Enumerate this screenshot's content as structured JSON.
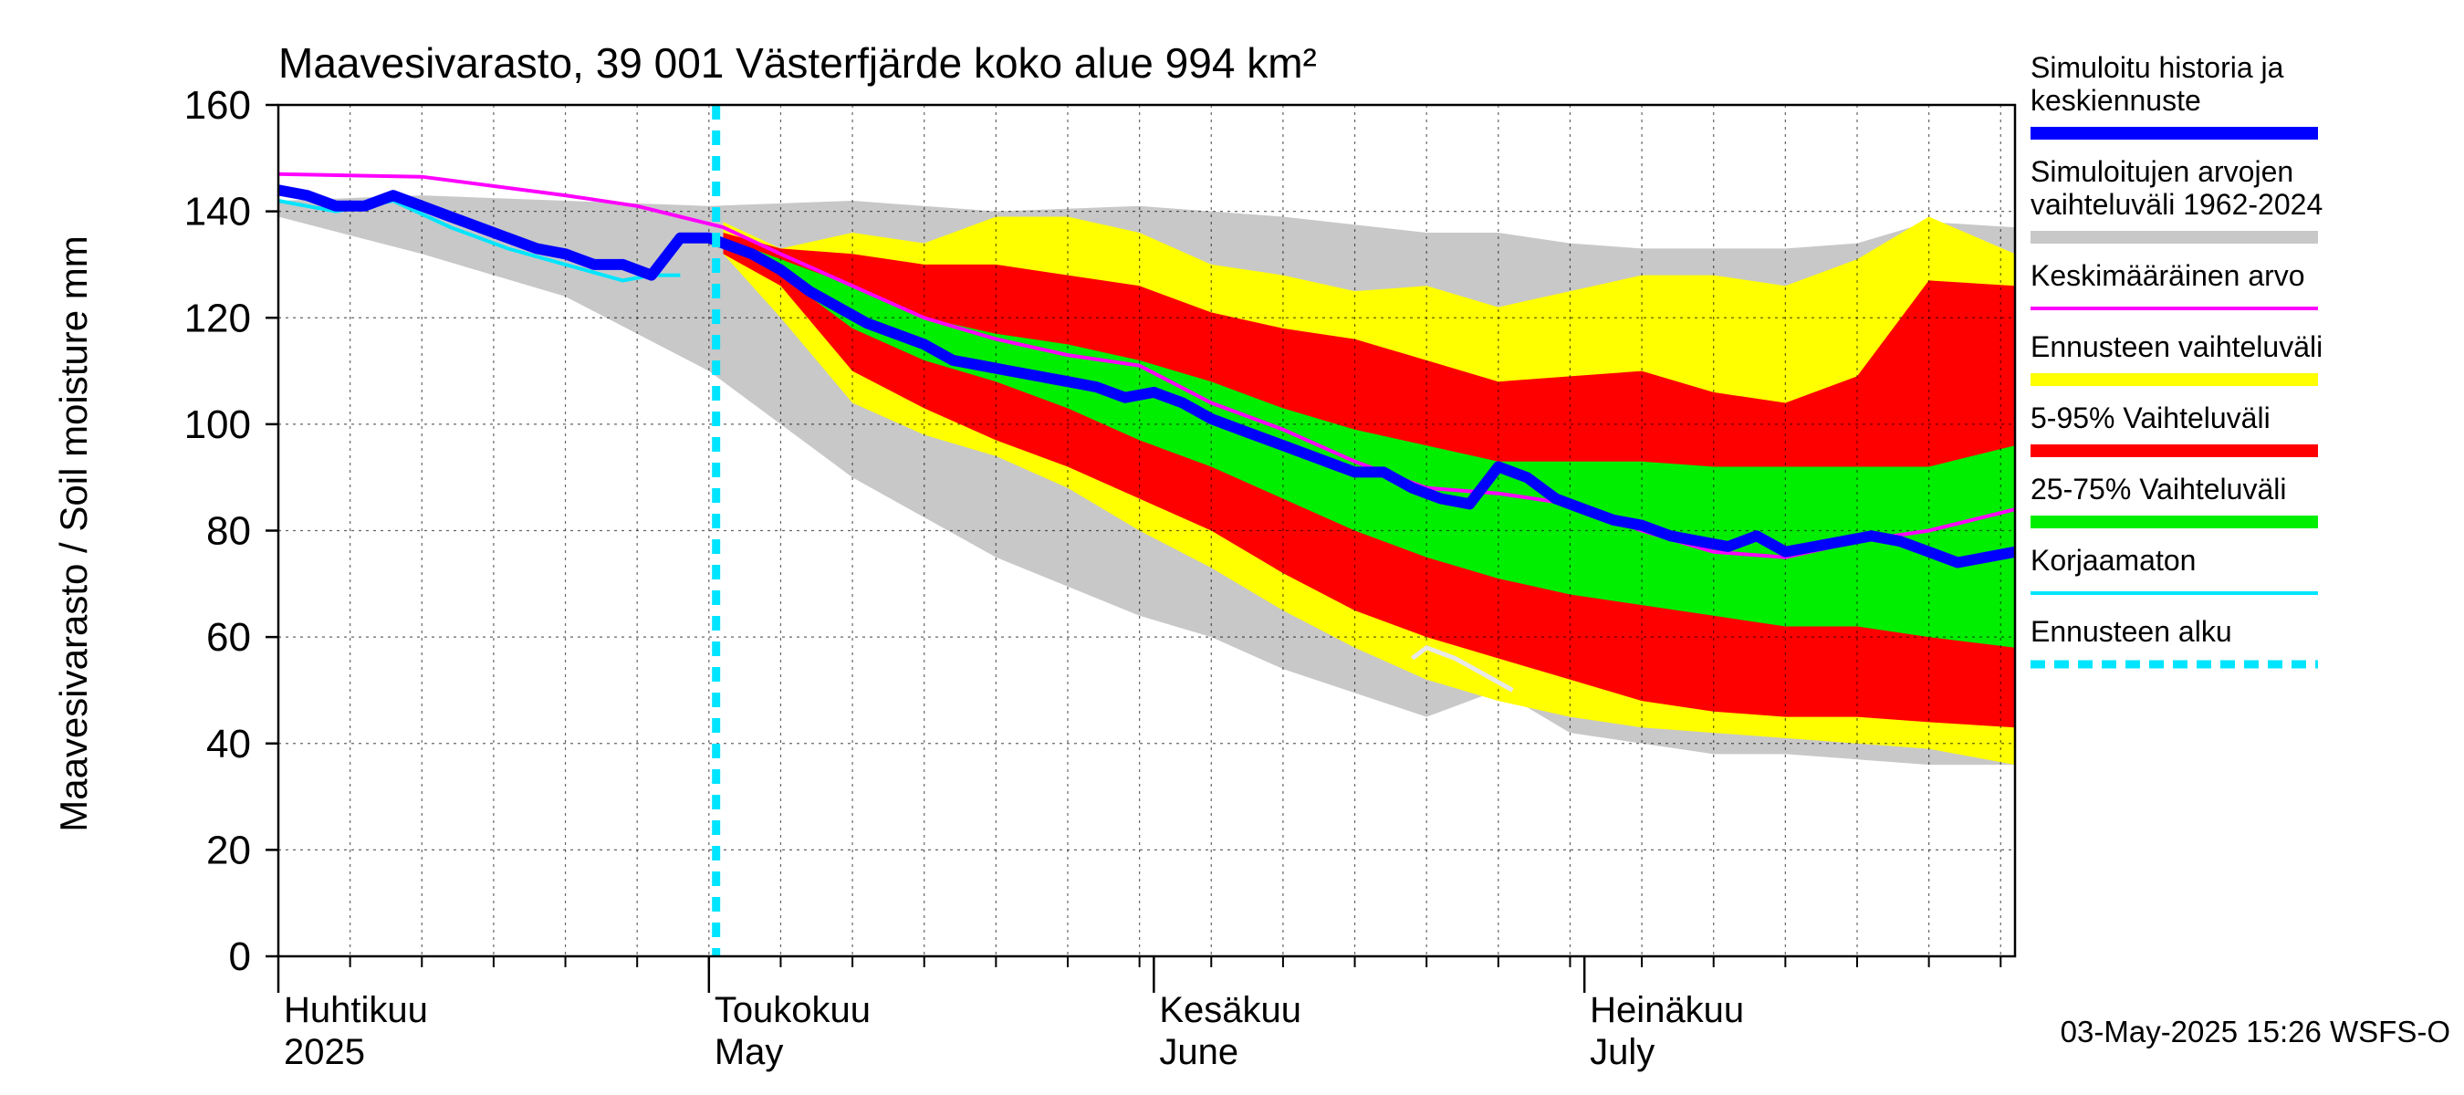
{
  "chart_data": {
    "type": "area",
    "title": "Maavesivarasto, 39 001 Västerfjärde koko alue 994 km²",
    "ylabel": "Maavesivarasto / Soil moisture   mm",
    "xlabel": "",
    "ylim": [
      0,
      160
    ],
    "yticks": [
      0,
      20,
      40,
      60,
      80,
      100,
      120,
      140,
      160
    ],
    "xlim_days": [
      0,
      121
    ],
    "grid": true,
    "month_labels": [
      {
        "day": 0,
        "fi": "Huhtikuu",
        "en": "2025"
      },
      {
        "day": 30,
        "fi": "Toukokuu",
        "en": "May"
      },
      {
        "day": 61,
        "fi": "Kesäkuu",
        "en": "June"
      },
      {
        "day": 91,
        "fi": "Heinäkuu",
        "en": "July"
      }
    ],
    "forecast_start_day": 30.5,
    "timestamp": "03-May-2025 15:26 WSFS-O",
    "colors": {
      "sim_history": "#0000ff",
      "sim_range": "#c8c8c8",
      "mean": "#ff00ff",
      "forecast_range": "#ffff00",
      "p5_95": "#ff0000",
      "p25_75": "#00ee00",
      "uncorrected": "#00e5ff",
      "forecast_start": "#00e5ff",
      "scenario_line": "#e8e8e8"
    },
    "legend": [
      {
        "key": "sim_history",
        "lines": [
          "Simuloitu historia ja",
          "keskiennuste"
        ],
        "style": "thick"
      },
      {
        "key": "sim_range",
        "lines": [
          "Simuloitujen arvojen",
          "vaihteluväli 1962-2024"
        ],
        "style": "thick"
      },
      {
        "key": "mean",
        "lines": [
          "Keskimääräinen arvo"
        ],
        "style": "thin"
      },
      {
        "key": "forecast_range",
        "lines": [
          "Ennusteen vaihteluväli"
        ],
        "style": "thick"
      },
      {
        "key": "p5_95",
        "lines": [
          "5-95% Vaihteluväli"
        ],
        "style": "thick"
      },
      {
        "key": "p25_75",
        "lines": [
          "25-75% Vaihteluväli"
        ],
        "style": "thick"
      },
      {
        "key": "uncorrected",
        "lines": [
          "Korjaamaton"
        ],
        "style": "thin"
      },
      {
        "key": "forecast_start",
        "lines": [
          "Ennusteen alku"
        ],
        "style": "dashed"
      }
    ],
    "series": {
      "sim_range": {
        "x": [
          0,
          10,
          20,
          30,
          40,
          50,
          60,
          65,
          70,
          80,
          85,
          90,
          95,
          100,
          105,
          110,
          115,
          121
        ],
        "upper": [
          142,
          143,
          142,
          141,
          142,
          140,
          141,
          140,
          139,
          136,
          136,
          134,
          133,
          133,
          133,
          134,
          138,
          137
        ],
        "lower": [
          139,
          132,
          124,
          110,
          90,
          75,
          64,
          60,
          54,
          45,
          50,
          42,
          40,
          38,
          38,
          37,
          36,
          36
        ]
      },
      "forecast_range": {
        "x": [
          31,
          35,
          40,
          45,
          50,
          55,
          60,
          65,
          70,
          75,
          80,
          85,
          90,
          95,
          100,
          105,
          110,
          115,
          121
        ],
        "upper": [
          138,
          133,
          136,
          134,
          139,
          139,
          136,
          130,
          128,
          125,
          126,
          122,
          125,
          128,
          128,
          126,
          131,
          139,
          132
        ],
        "lower": [
          132,
          120,
          104,
          98,
          94,
          88,
          80,
          73,
          65,
          58,
          52,
          48,
          45,
          43,
          42,
          41,
          40,
          39,
          36
        ]
      },
      "p5_95": {
        "x": [
          31,
          35,
          40,
          45,
          50,
          55,
          60,
          65,
          70,
          75,
          80,
          85,
          90,
          95,
          100,
          105,
          110,
          115,
          121
        ],
        "upper": [
          136,
          133,
          132,
          130,
          130,
          128,
          126,
          121,
          118,
          116,
          112,
          108,
          109,
          110,
          106,
          104,
          109,
          127,
          126
        ],
        "lower": [
          132,
          126,
          110,
          103,
          97,
          92,
          86,
          80,
          72,
          65,
          60,
          56,
          52,
          48,
          46,
          45,
          45,
          44,
          43
        ]
      },
      "p25_75": {
        "x": [
          31,
          35,
          40,
          45,
          50,
          55,
          60,
          65,
          70,
          75,
          80,
          85,
          90,
          95,
          100,
          105,
          110,
          115,
          121
        ],
        "upper": [
          135,
          131,
          126,
          120,
          117,
          115,
          112,
          108,
          103,
          99,
          96,
          93,
          93,
          93,
          92,
          92,
          92,
          92,
          96
        ],
        "lower": [
          134,
          128,
          118,
          112,
          108,
          103,
          97,
          92,
          86,
          80,
          75,
          71,
          68,
          66,
          64,
          62,
          62,
          60,
          58
        ]
      },
      "sim_history": {
        "x": [
          0,
          2,
          4,
          6,
          8,
          10,
          12,
          14,
          16,
          18,
          20,
          22,
          24,
          26,
          28,
          29,
          30,
          31,
          33,
          35,
          37,
          39,
          41,
          43,
          45,
          47,
          49,
          51,
          53,
          55,
          57,
          59,
          61,
          63,
          65,
          67,
          69,
          71,
          73,
          75,
          77,
          79,
          81,
          83,
          85,
          87,
          89,
          91,
          93,
          95,
          97,
          99,
          101,
          103,
          105,
          107,
          109,
          111,
          113,
          115,
          117,
          119,
          121
        ],
        "y": [
          144,
          143,
          141,
          141,
          143,
          141,
          139,
          137,
          135,
          133,
          132,
          130,
          130,
          128,
          135,
          135,
          135,
          134,
          132,
          129,
          125,
          122,
          119,
          117,
          115,
          112,
          111,
          110,
          109,
          108,
          107,
          105,
          106,
          104,
          101,
          99,
          97,
          95,
          93,
          91,
          91,
          88,
          86,
          85,
          92,
          90,
          86,
          84,
          82,
          81,
          79,
          78,
          77,
          79,
          76,
          77,
          78,
          79,
          78,
          76,
          74,
          75,
          76
        ]
      },
      "mean": {
        "x": [
          0,
          10,
          20,
          25,
          28,
          31,
          35,
          40,
          45,
          50,
          55,
          60,
          65,
          70,
          75,
          80,
          85,
          90,
          95,
          100,
          105,
          110,
          115,
          121
        ],
        "y": [
          147,
          146.5,
          143,
          141,
          139,
          137,
          132,
          126,
          120,
          116,
          113,
          111,
          104,
          99,
          93,
          88,
          87,
          85,
          80,
          76,
          75,
          78,
          80,
          84
        ]
      },
      "uncorrected": {
        "x": [
          0,
          4,
          8,
          12,
          16,
          20,
          24,
          26,
          28
        ],
        "y": [
          142,
          140,
          142,
          137,
          133,
          130,
          127,
          128,
          128
        ]
      },
      "scenario_line": {
        "x": [
          79,
          80,
          82,
          84,
          86
        ],
        "y": [
          56,
          58,
          56,
          53,
          50
        ]
      }
    }
  }
}
